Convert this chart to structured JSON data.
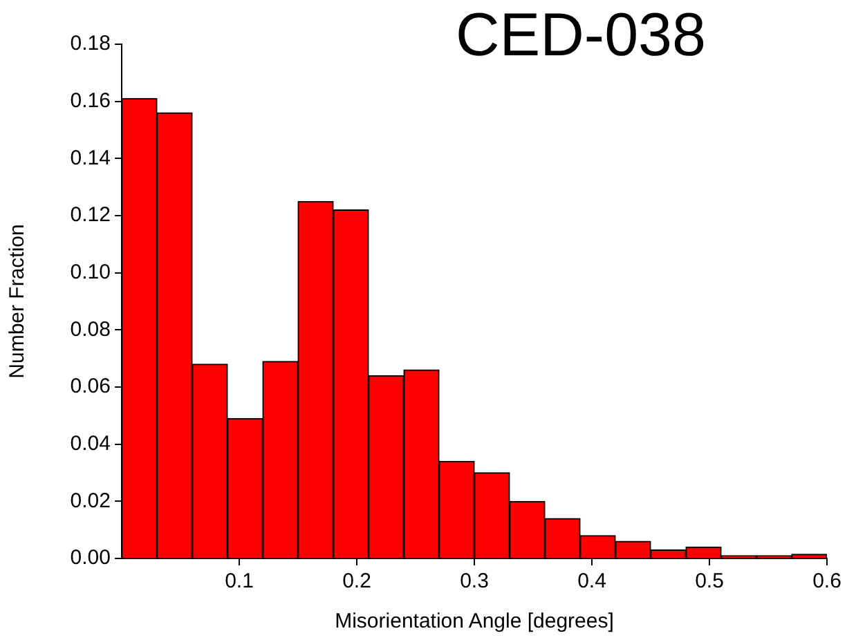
{
  "chart_data": {
    "type": "histogram",
    "title": "CED-038",
    "xlabel": "Misorientation Angle [degrees]",
    "ylabel": "Number Fraction",
    "bins": [
      0,
      0.03,
      0.06,
      0.09,
      0.12,
      0.15,
      0.18,
      0.21,
      0.24,
      0.27,
      0.3,
      0.33,
      0.36,
      0.39,
      0.42,
      0.45,
      0.48,
      0.51,
      0.54,
      0.57,
      0.6
    ],
    "values": [
      0.161,
      0.156,
      0.068,
      0.049,
      0.069,
      0.125,
      0.122,
      0.064,
      0.066,
      0.034,
      0.03,
      0.02,
      0.014,
      0.008,
      0.006,
      0.003,
      0.004,
      0.001,
      0.001,
      0.0015
    ],
    "color": "#ff0000",
    "xlim": [
      0,
      0.6
    ],
    "xticks": [
      0.1,
      0.2,
      0.3,
      0.4,
      0.5,
      0.6
    ],
    "ylim": [
      0,
      0.18
    ],
    "yticks": [
      {
        "value": 0,
        "label": "0.00"
      },
      {
        "value": 0.02,
        "label": "0.02"
      },
      {
        "value": 0.04,
        "label": "0.04"
      },
      {
        "value": 0.06,
        "label": "0.06"
      },
      {
        "value": 0.08,
        "label": "0.08"
      },
      {
        "value": 0.1,
        "label": "0.10"
      },
      {
        "value": 0.12,
        "label": "0.12"
      },
      {
        "value": 0.14,
        "label": "0.14"
      },
      {
        "value": 0.16,
        "label": "0.16"
      },
      {
        "value": 0.18,
        "label": "0.18"
      }
    ],
    "grid": false,
    "legend": false
  }
}
